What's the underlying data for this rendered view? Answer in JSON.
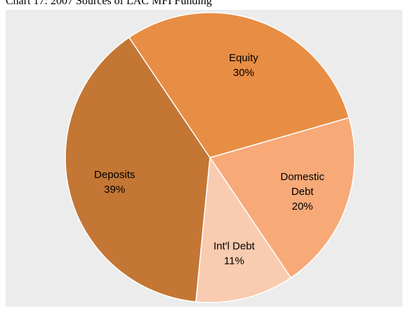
{
  "title": "Chart 17: 2007 Sources of LAC MFI Funding",
  "chart_data": {
    "type": "pie",
    "slices": [
      {
        "label": "Domestic Debt",
        "value": 20,
        "color": "#f7a978"
      },
      {
        "label": "Int'l Debt",
        "value": 11,
        "color": "#f9cbb0"
      },
      {
        "label": "Deposits",
        "value": 39,
        "color": "#c47634"
      },
      {
        "label": "Equity",
        "value": 30,
        "color": "#e88d44"
      }
    ]
  }
}
